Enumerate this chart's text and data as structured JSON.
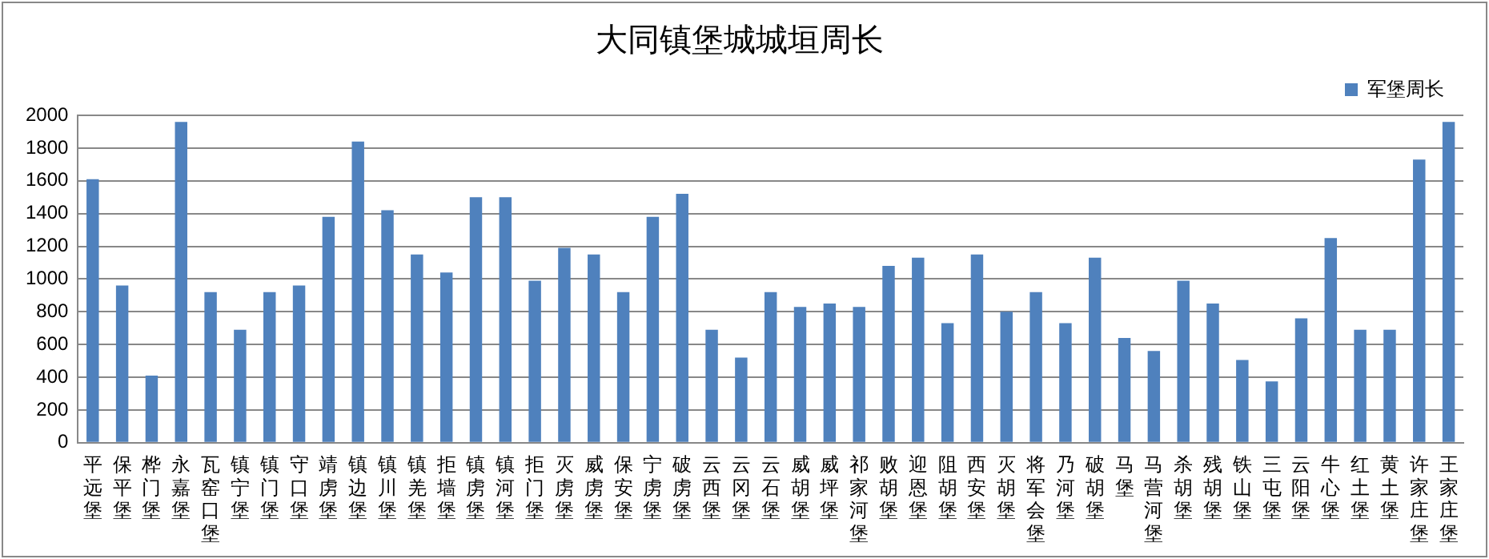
{
  "chart_data": {
    "type": "bar",
    "title": "大同镇堡城城垣周长",
    "categories": [
      "平远堡",
      "保平堡",
      "桦门堡",
      "永嘉堡",
      "瓦窑口堡",
      "镇宁堡",
      "镇门堡",
      "守口堡",
      "靖虏堡",
      "镇边堡",
      "镇川堡",
      "镇羌堡",
      "拒墙堡",
      "镇虏堡",
      "镇河堡",
      "拒门堡",
      "灭虏堡",
      "威虏堡",
      "保安堡",
      "宁虏堡",
      "破虏堡",
      "云西堡",
      "云冈堡",
      "云石堡",
      "威胡堡",
      "威坪堡",
      "祁家河堡",
      "败胡堡",
      "迎恩堡",
      "阻胡堡",
      "西安堡",
      "灭胡堡",
      "将军会堡",
      "乃河堡",
      "破胡堡",
      "马堡",
      "马营河堡",
      "杀胡堡",
      "残胡堡",
      "铁山堡",
      "三屯堡",
      "云阳堡",
      "牛心堡",
      "红土堡",
      "黄土堡",
      "许家庄堡",
      "王家庄堡"
    ],
    "series": [
      {
        "name": "军堡周长",
        "color": "#4f81bd",
        "values": [
          1610,
          960,
          410,
          1960,
          920,
          690,
          920,
          960,
          1380,
          1840,
          1420,
          1150,
          1040,
          1500,
          1500,
          990,
          1190,
          1150,
          920,
          1380,
          1520,
          690,
          520,
          920,
          830,
          850,
          830,
          1080,
          1130,
          730,
          1150,
          800,
          920,
          730,
          1130,
          640,
          560,
          990,
          850,
          505,
          375,
          760,
          1250,
          690,
          690,
          1730,
          1960
        ]
      }
    ],
    "ylim": [
      0,
      2000
    ],
    "yticks": [
      0,
      200,
      400,
      600,
      800,
      1000,
      1200,
      1400,
      1600,
      1800,
      2000
    ],
    "grid": "y",
    "legend": "top right"
  }
}
